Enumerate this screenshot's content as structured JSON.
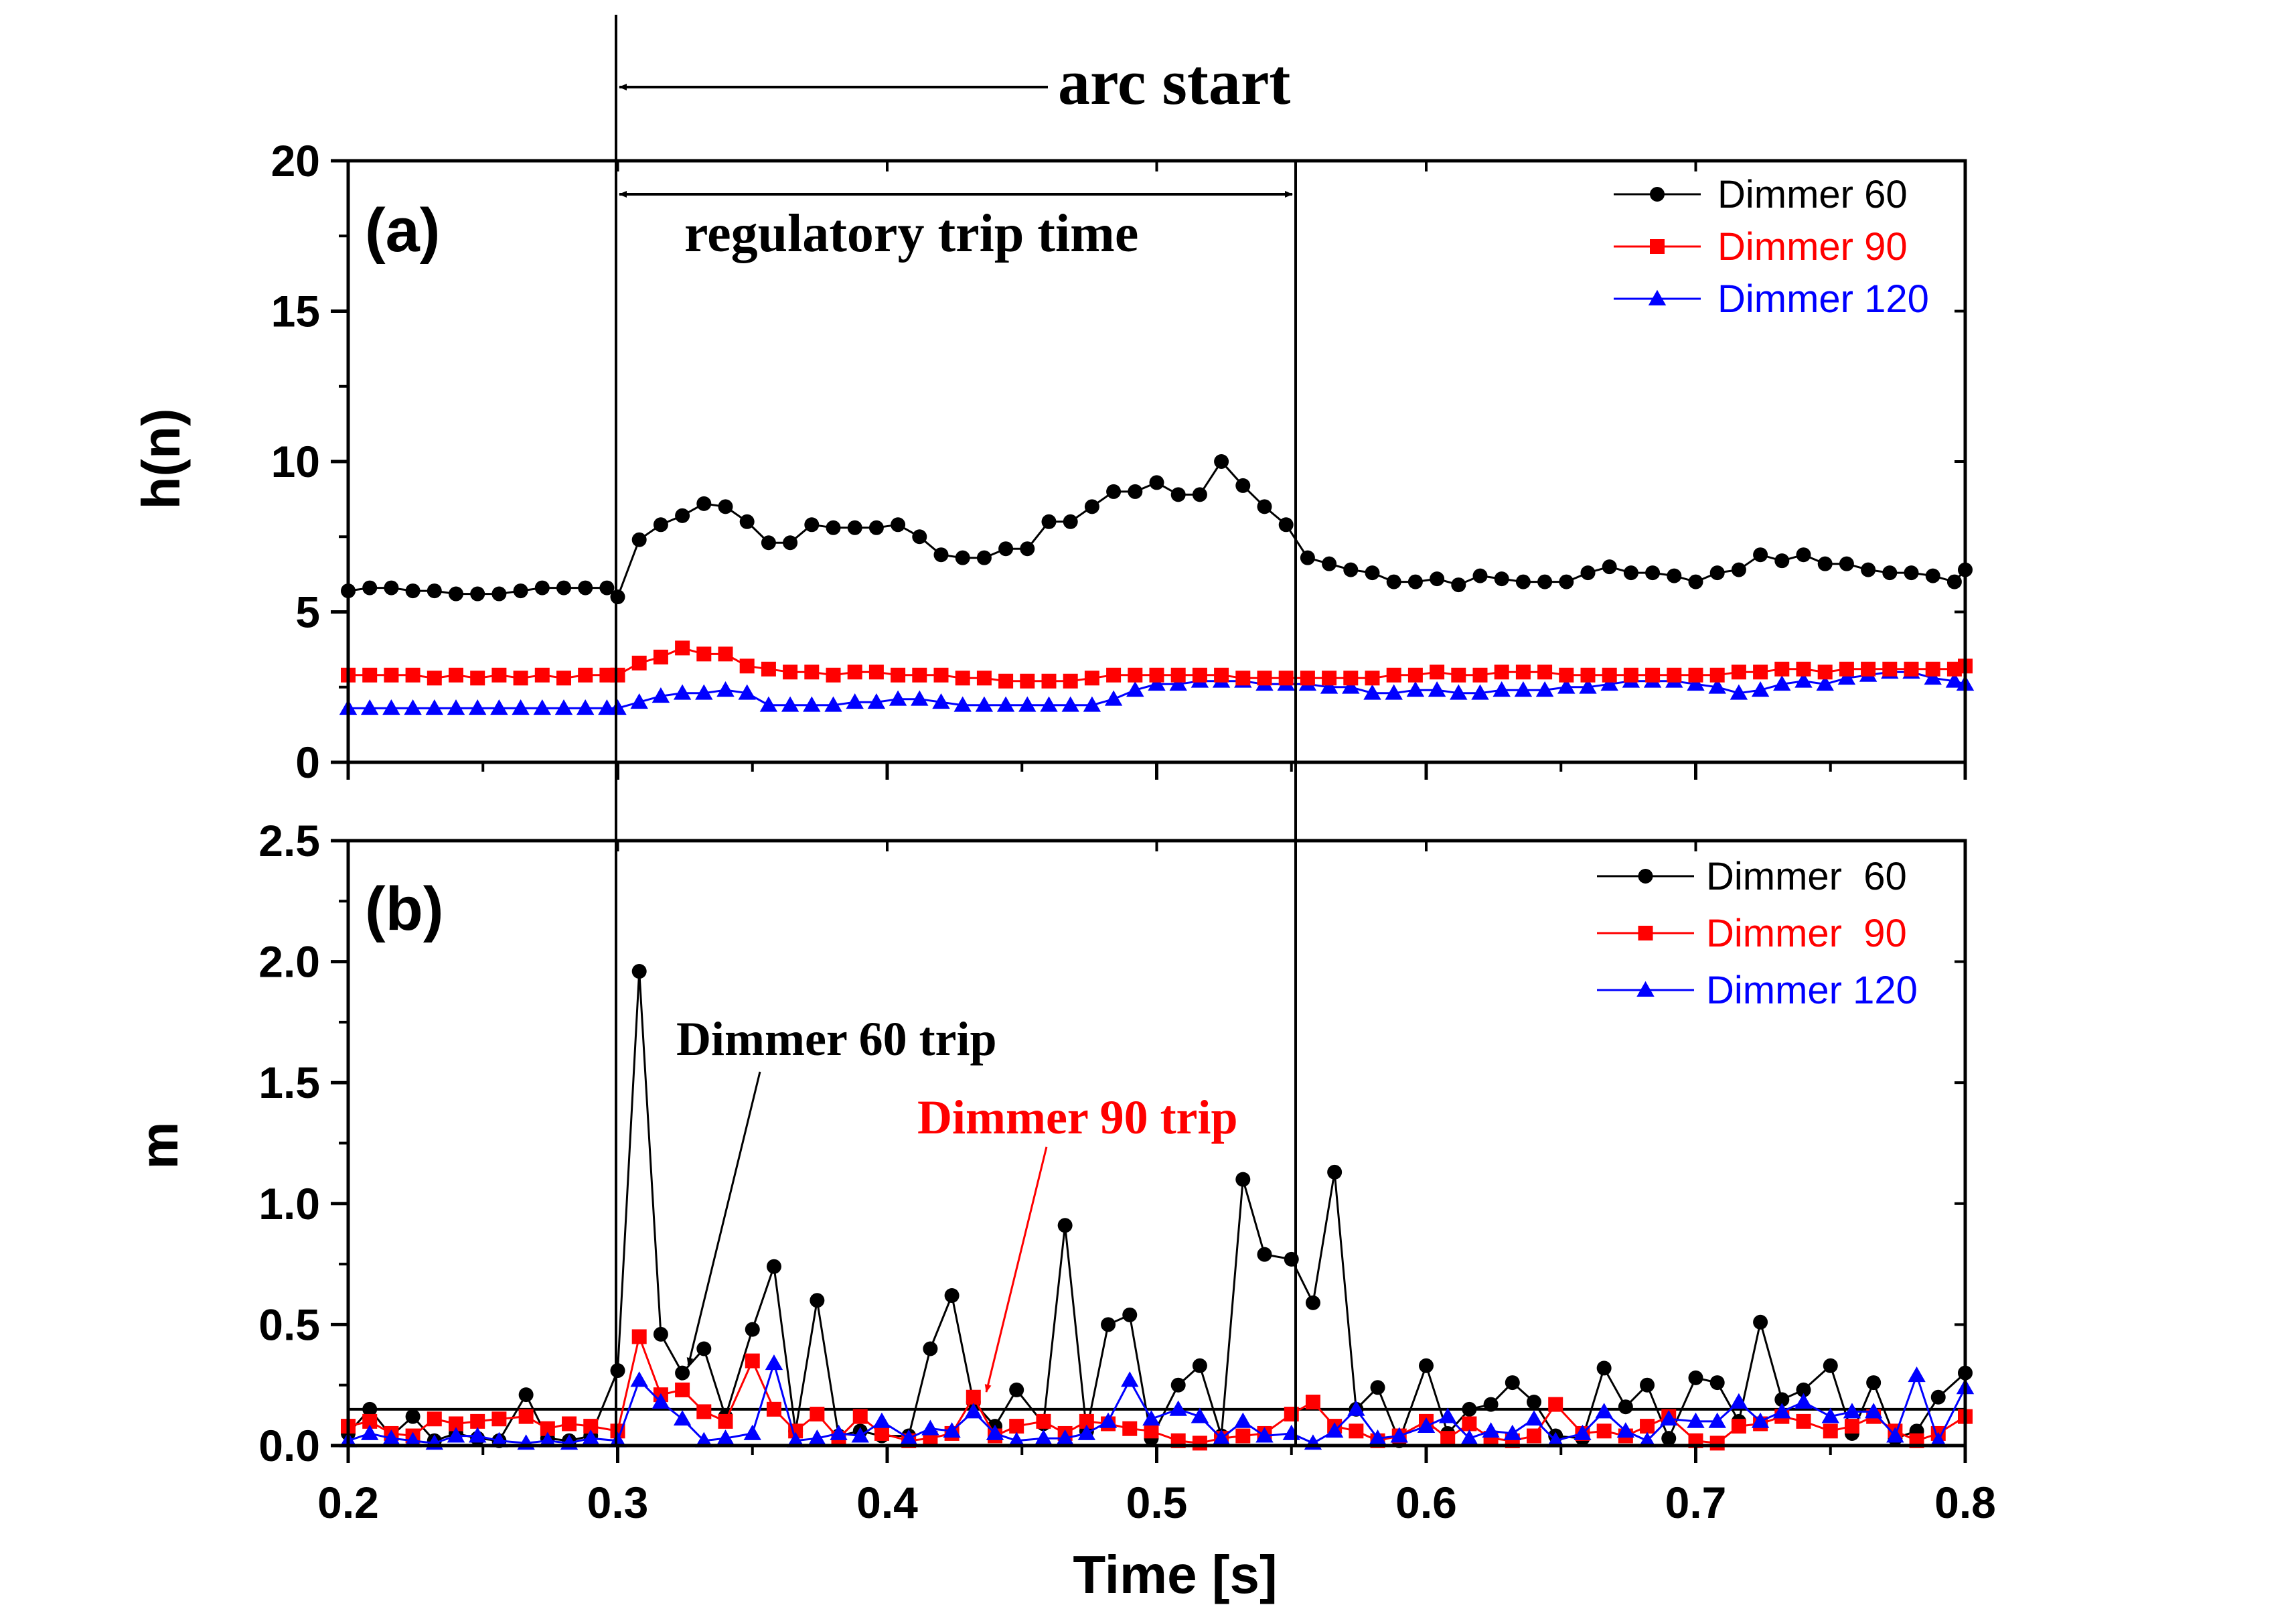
{
  "chart_data": [
    {
      "type": "line",
      "panel_label": "(a)",
      "ylabel": "h(n)",
      "xlim": [
        0.2,
        0.8
      ],
      "ylim": [
        0,
        20
      ],
      "yticks": [
        "0",
        "5",
        "10",
        "15",
        "20"
      ],
      "legend_placement": "top-right",
      "series": [
        {
          "name": "Dimmer 60",
          "color": "#000000",
          "marker": "circle",
          "x": [
            0.2,
            0.208,
            0.216,
            0.224,
            0.232,
            0.24,
            0.248,
            0.256,
            0.264,
            0.272,
            0.28,
            0.288,
            0.296,
            0.3,
            0.308,
            0.316,
            0.324,
            0.332,
            0.34,
            0.348,
            0.356,
            0.364,
            0.372,
            0.38,
            0.388,
            0.396,
            0.404,
            0.412,
            0.42,
            0.428,
            0.436,
            0.444,
            0.452,
            0.46,
            0.468,
            0.476,
            0.484,
            0.492,
            0.5,
            0.508,
            0.516,
            0.524,
            0.532,
            0.54,
            0.548,
            0.556,
            0.564,
            0.572,
            0.58,
            0.588,
            0.596,
            0.604,
            0.612,
            0.62,
            0.628,
            0.636,
            0.644,
            0.652,
            0.66,
            0.668,
            0.676,
            0.684,
            0.692,
            0.7,
            0.708,
            0.716,
            0.724,
            0.732,
            0.74,
            0.748,
            0.756,
            0.764,
            0.772,
            0.78,
            0.788,
            0.796,
            0.8
          ],
          "y": [
            5.7,
            5.8,
            5.8,
            5.7,
            5.7,
            5.6,
            5.6,
            5.6,
            5.7,
            5.8,
            5.8,
            5.8,
            5.8,
            5.5,
            7.4,
            7.9,
            8.2,
            8.6,
            8.5,
            8.0,
            7.3,
            7.3,
            7.9,
            7.8,
            7.8,
            7.8,
            7.9,
            7.5,
            6.9,
            6.8,
            6.8,
            7.1,
            7.1,
            8.0,
            8.0,
            8.5,
            9.0,
            9.0,
            9.3,
            8.9,
            8.9,
            10.0,
            9.2,
            8.5,
            7.9,
            6.8,
            6.6,
            6.4,
            6.3,
            6.0,
            6.0,
            6.1,
            5.9,
            6.2,
            6.1,
            6.0,
            6.0,
            6.0,
            6.3,
            6.5,
            6.3,
            6.3,
            6.2,
            6.0,
            6.3,
            6.4,
            6.9,
            6.7,
            6.9,
            6.6,
            6.6,
            6.4,
            6.3,
            6.3,
            6.2,
            6.0,
            6.4
          ]
        },
        {
          "name": "Dimmer 90",
          "color": "#ff0000",
          "marker": "square",
          "x": [
            0.2,
            0.208,
            0.216,
            0.224,
            0.232,
            0.24,
            0.248,
            0.256,
            0.264,
            0.272,
            0.28,
            0.288,
            0.296,
            0.3,
            0.308,
            0.316,
            0.324,
            0.332,
            0.34,
            0.348,
            0.356,
            0.364,
            0.372,
            0.38,
            0.388,
            0.396,
            0.404,
            0.412,
            0.42,
            0.428,
            0.436,
            0.444,
            0.452,
            0.46,
            0.468,
            0.476,
            0.484,
            0.492,
            0.5,
            0.508,
            0.516,
            0.524,
            0.532,
            0.54,
            0.548,
            0.556,
            0.564,
            0.572,
            0.58,
            0.588,
            0.596,
            0.604,
            0.612,
            0.62,
            0.628,
            0.636,
            0.644,
            0.652,
            0.66,
            0.668,
            0.676,
            0.684,
            0.692,
            0.7,
            0.708,
            0.716,
            0.724,
            0.732,
            0.74,
            0.748,
            0.756,
            0.764,
            0.772,
            0.78,
            0.788,
            0.796,
            0.8
          ],
          "y": [
            2.9,
            2.9,
            2.9,
            2.9,
            2.8,
            2.9,
            2.8,
            2.9,
            2.8,
            2.9,
            2.8,
            2.9,
            2.9,
            2.9,
            3.3,
            3.5,
            3.8,
            3.6,
            3.6,
            3.2,
            3.1,
            3.0,
            3.0,
            2.9,
            3.0,
            3.0,
            2.9,
            2.9,
            2.9,
            2.8,
            2.8,
            2.7,
            2.7,
            2.7,
            2.7,
            2.8,
            2.9,
            2.9,
            2.9,
            2.9,
            2.9,
            2.9,
            2.8,
            2.8,
            2.8,
            2.8,
            2.8,
            2.8,
            2.8,
            2.9,
            2.9,
            3.0,
            2.9,
            2.9,
            3.0,
            3.0,
            3.0,
            2.9,
            2.9,
            2.9,
            2.9,
            2.9,
            2.9,
            2.9,
            2.9,
            3.0,
            3.0,
            3.1,
            3.1,
            3.0,
            3.1,
            3.1,
            3.1,
            3.1,
            3.1,
            3.1,
            3.2
          ]
        },
        {
          "name": "Dimmer 120",
          "color": "#0000ff",
          "marker": "triangle",
          "x": [
            0.2,
            0.208,
            0.216,
            0.224,
            0.232,
            0.24,
            0.248,
            0.256,
            0.264,
            0.272,
            0.28,
            0.288,
            0.296,
            0.3,
            0.308,
            0.316,
            0.324,
            0.332,
            0.34,
            0.348,
            0.356,
            0.364,
            0.372,
            0.38,
            0.388,
            0.396,
            0.404,
            0.412,
            0.42,
            0.428,
            0.436,
            0.444,
            0.452,
            0.46,
            0.468,
            0.476,
            0.484,
            0.492,
            0.5,
            0.508,
            0.516,
            0.524,
            0.532,
            0.54,
            0.548,
            0.556,
            0.564,
            0.572,
            0.58,
            0.588,
            0.596,
            0.604,
            0.612,
            0.62,
            0.628,
            0.636,
            0.644,
            0.652,
            0.66,
            0.668,
            0.676,
            0.684,
            0.692,
            0.7,
            0.708,
            0.716,
            0.724,
            0.732,
            0.74,
            0.748,
            0.756,
            0.764,
            0.772,
            0.78,
            0.788,
            0.796,
            0.8
          ],
          "y": [
            1.8,
            1.8,
            1.8,
            1.8,
            1.8,
            1.8,
            1.8,
            1.8,
            1.8,
            1.8,
            1.8,
            1.8,
            1.8,
            1.8,
            2.0,
            2.2,
            2.3,
            2.3,
            2.4,
            2.3,
            1.9,
            1.9,
            1.9,
            1.9,
            2.0,
            2.0,
            2.1,
            2.1,
            2.0,
            1.9,
            1.9,
            1.9,
            1.9,
            1.9,
            1.9,
            1.9,
            2.1,
            2.4,
            2.6,
            2.6,
            2.7,
            2.7,
            2.7,
            2.6,
            2.6,
            2.6,
            2.5,
            2.5,
            2.3,
            2.3,
            2.4,
            2.4,
            2.3,
            2.3,
            2.4,
            2.4,
            2.4,
            2.5,
            2.5,
            2.6,
            2.7,
            2.7,
            2.7,
            2.6,
            2.5,
            2.3,
            2.4,
            2.6,
            2.7,
            2.6,
            2.8,
            2.9,
            3.0,
            3.0,
            2.8,
            2.7,
            2.6
          ]
        }
      ]
    },
    {
      "type": "line",
      "panel_label": "(b)",
      "xlabel": "Time [s]",
      "ylabel": "m",
      "xlim": [
        0.2,
        0.8
      ],
      "ylim": [
        0,
        2.5
      ],
      "xticks": [
        "0.2",
        "0.3",
        "0.4",
        "0.5",
        "0.6",
        "0.7",
        "0.8"
      ],
      "yticks": [
        "0.0",
        "0.5",
        "1.0",
        "1.5",
        "2.0",
        "2.5"
      ],
      "threshold": 0.15,
      "legend_placement": "top-right",
      "series": [
        {
          "name": "Dimmer  60",
          "color": "#000000",
          "marker": "circle",
          "x": [
            0.2,
            0.208,
            0.216,
            0.224,
            0.232,
            0.24,
            0.248,
            0.256,
            0.266,
            0.274,
            0.282,
            0.29,
            0.3,
            0.308,
            0.316,
            0.324,
            0.332,
            0.34,
            0.35,
            0.358,
            0.366,
            0.374,
            0.382,
            0.39,
            0.398,
            0.408,
            0.416,
            0.424,
            0.432,
            0.44,
            0.448,
            0.458,
            0.466,
            0.474,
            0.482,
            0.49,
            0.498,
            0.508,
            0.516,
            0.524,
            0.532,
            0.54,
            0.55,
            0.558,
            0.566,
            0.574,
            0.582,
            0.59,
            0.6,
            0.608,
            0.616,
            0.624,
            0.632,
            0.64,
            0.648,
            0.658,
            0.666,
            0.674,
            0.682,
            0.69,
            0.7,
            0.708,
            0.716,
            0.724,
            0.732,
            0.74,
            0.75,
            0.758,
            0.766,
            0.774,
            0.782,
            0.79,
            0.8
          ],
          "y": [
            0.05,
            0.15,
            0.04,
            0.12,
            0.02,
            0.05,
            0.03,
            0.02,
            0.21,
            0.03,
            0.02,
            0.04,
            0.31,
            1.96,
            0.46,
            0.3,
            0.4,
            0.12,
            0.48,
            0.74,
            0.06,
            0.6,
            0.04,
            0.06,
            0.04,
            0.04,
            0.4,
            0.62,
            0.18,
            0.08,
            0.23,
            0.09,
            0.91,
            0.06,
            0.5,
            0.54,
            0.03,
            0.25,
            0.33,
            0.04,
            1.1,
            0.79,
            0.77,
            0.59,
            1.13,
            0.15,
            0.24,
            0.02,
            0.33,
            0.05,
            0.15,
            0.17,
            0.26,
            0.18,
            0.04,
            0.03,
            0.32,
            0.16,
            0.25,
            0.03,
            0.28,
            0.26,
            0.1,
            0.51,
            0.19,
            0.23,
            0.33,
            0.05,
            0.26,
            0.03,
            0.06,
            0.2,
            0.3
          ]
        },
        {
          "name": "Dimmer  90",
          "color": "#ff0000",
          "marker": "square",
          "x": [
            0.2,
            0.208,
            0.216,
            0.224,
            0.232,
            0.24,
            0.248,
            0.256,
            0.266,
            0.274,
            0.282,
            0.29,
            0.3,
            0.308,
            0.316,
            0.324,
            0.332,
            0.34,
            0.35,
            0.358,
            0.366,
            0.374,
            0.382,
            0.39,
            0.398,
            0.408,
            0.416,
            0.424,
            0.432,
            0.44,
            0.448,
            0.458,
            0.466,
            0.474,
            0.482,
            0.49,
            0.498,
            0.508,
            0.516,
            0.524,
            0.532,
            0.54,
            0.55,
            0.558,
            0.566,
            0.574,
            0.582,
            0.59,
            0.6,
            0.608,
            0.616,
            0.624,
            0.632,
            0.64,
            0.648,
            0.658,
            0.666,
            0.674,
            0.682,
            0.69,
            0.7,
            0.708,
            0.716,
            0.724,
            0.732,
            0.74,
            0.75,
            0.758,
            0.766,
            0.774,
            0.782,
            0.79,
            0.8
          ],
          "y": [
            0.08,
            0.1,
            0.05,
            0.04,
            0.11,
            0.09,
            0.1,
            0.11,
            0.12,
            0.07,
            0.09,
            0.08,
            0.06,
            0.45,
            0.21,
            0.23,
            0.14,
            0.1,
            0.35,
            0.15,
            0.06,
            0.13,
            0.03,
            0.12,
            0.05,
            0.02,
            0.03,
            0.05,
            0.2,
            0.04,
            0.08,
            0.1,
            0.05,
            0.1,
            0.09,
            0.07,
            0.06,
            0.02,
            0.01,
            0.03,
            0.04,
            0.05,
            0.13,
            0.18,
            0.08,
            0.06,
            0.02,
            0.04,
            0.1,
            0.03,
            0.09,
            0.03,
            0.02,
            0.04,
            0.17,
            0.05,
            0.06,
            0.04,
            0.08,
            0.12,
            0.02,
            0.01,
            0.08,
            0.09,
            0.12,
            0.1,
            0.06,
            0.08,
            0.12,
            0.06,
            0.02,
            0.05,
            0.12
          ]
        },
        {
          "name": "Dimmer 120",
          "color": "#0000ff",
          "marker": "triangle",
          "x": [
            0.2,
            0.208,
            0.216,
            0.224,
            0.232,
            0.24,
            0.248,
            0.256,
            0.266,
            0.274,
            0.282,
            0.29,
            0.3,
            0.308,
            0.316,
            0.324,
            0.332,
            0.34,
            0.35,
            0.358,
            0.366,
            0.374,
            0.382,
            0.39,
            0.398,
            0.408,
            0.416,
            0.424,
            0.432,
            0.44,
            0.448,
            0.458,
            0.466,
            0.474,
            0.482,
            0.49,
            0.498,
            0.508,
            0.516,
            0.524,
            0.532,
            0.54,
            0.55,
            0.558,
            0.566,
            0.574,
            0.582,
            0.59,
            0.6,
            0.608,
            0.616,
            0.624,
            0.632,
            0.64,
            0.648,
            0.658,
            0.666,
            0.674,
            0.682,
            0.69,
            0.7,
            0.708,
            0.716,
            0.724,
            0.732,
            0.74,
            0.75,
            0.758,
            0.766,
            0.774,
            0.782,
            0.79,
            0.8
          ],
          "y": [
            0.02,
            0.05,
            0.03,
            0.02,
            0.01,
            0.04,
            0.04,
            0.02,
            0.01,
            0.02,
            0.01,
            0.03,
            0.02,
            0.27,
            0.18,
            0.11,
            0.02,
            0.03,
            0.05,
            0.34,
            0.02,
            0.03,
            0.05,
            0.04,
            0.1,
            0.03,
            0.07,
            0.06,
            0.14,
            0.05,
            0.02,
            0.03,
            0.03,
            0.05,
            0.1,
            0.27,
            0.11,
            0.15,
            0.12,
            0.03,
            0.1,
            0.04,
            0.05,
            0.01,
            0.06,
            0.15,
            0.03,
            0.04,
            0.08,
            0.12,
            0.03,
            0.06,
            0.05,
            0.11,
            0.02,
            0.05,
            0.14,
            0.06,
            0.02,
            0.11,
            0.1,
            0.1,
            0.18,
            0.1,
            0.14,
            0.18,
            0.12,
            0.14,
            0.14,
            0.04,
            0.29,
            0.02,
            0.24
          ]
        }
      ]
    }
  ],
  "annotations": {
    "arc_start": "arc start",
    "regulatory_trip_time": "regulatory trip time",
    "dimmer60_trip": "Dimmer 60 trip",
    "dimmer90_trip": "Dimmer 90 trip",
    "arc_start_time": 0.3,
    "trip_end_time": 0.55
  }
}
